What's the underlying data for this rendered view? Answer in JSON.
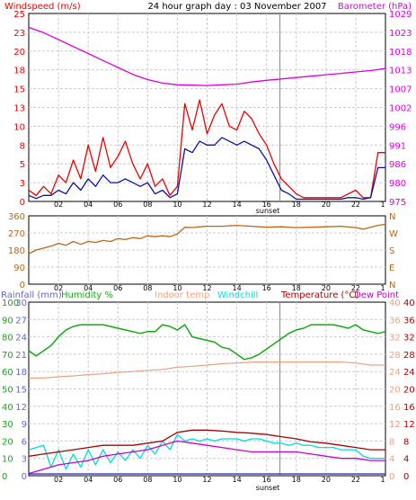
{
  "colors": {
    "wind_speed": "#ee0000",
    "wind_avg": "#1010a0",
    "barometer": "#dd00dd",
    "direction": "#b8661a",
    "rainfall": "#6666cc",
    "humidity": "#11aa11",
    "indoor_temp": "#f0a080",
    "windchill": "#00dddd",
    "temperature": "#aa0000",
    "dew_point": "#cc00cc",
    "rain_line": "#2222cc",
    "grid": "#cccccc",
    "sunset_line": "#888888"
  },
  "chart_data": [
    {
      "type": "line",
      "title": "24 hour graph day : 03 November 2007",
      "legend_left": "Windspeed (m/s)",
      "legend_right": "Barometer (hPa)",
      "x_ticks": [
        "02",
        "04",
        "06",
        "08",
        "10",
        "12",
        "14",
        "16",
        "18",
        "20",
        "22",
        "1"
      ],
      "annotation": "sunset",
      "left_axis": {
        "range": [
          0,
          25
        ],
        "ticks": [
          "0",
          "3",
          "5",
          "8",
          "10",
          "13",
          "15",
          "18",
          "20",
          "23",
          "25"
        ]
      },
      "right_axis": {
        "range": [
          975,
          1029
        ],
        "ticks": [
          "975",
          "980",
          "986",
          "991",
          "996",
          "1002",
          "1007",
          "1013",
          "1018",
          "1023",
          "1029"
        ]
      },
      "grid": true,
      "series": [
        {
          "name": "Windspeed (m/s)",
          "role": "gust",
          "x": [
            0,
            0.5,
            1,
            1.5,
            2,
            2.5,
            3,
            3.5,
            4,
            4.5,
            5,
            5.5,
            6,
            6.5,
            7,
            7.5,
            8,
            8.5,
            9,
            9.5,
            10,
            10.5,
            11,
            11.5,
            12,
            12.5,
            13,
            13.5,
            14,
            14.5,
            15,
            15.5,
            16,
            16.5,
            17,
            17.5,
            18,
            18.5,
            19,
            19.5,
            20,
            20.5,
            21,
            21.5,
            22,
            22.5,
            23,
            23.5,
            24
          ],
          "values": [
            1.5,
            0.8,
            2,
            1,
            3.5,
            2.5,
            5.5,
            3,
            7.5,
            4,
            8.5,
            4.5,
            6,
            8,
            5,
            3,
            5,
            2,
            3,
            0.8,
            2,
            13,
            9.5,
            13.5,
            9,
            11.5,
            13,
            10,
            9.5,
            12,
            11,
            9,
            7.5,
            5,
            3,
            2,
            1,
            0.5,
            0.5,
            0.5,
            0.5,
            0.5,
            0.5,
            1,
            1.5,
            0.5,
            0.5,
            6.5,
            6.5
          ]
        },
        {
          "name": "Average",
          "role": "average",
          "x": [
            0,
            0.5,
            1,
            1.5,
            2,
            2.5,
            3,
            3.5,
            4,
            4.5,
            5,
            5.5,
            6,
            6.5,
            7,
            7.5,
            8,
            8.5,
            9,
            9.5,
            10,
            10.5,
            11,
            11.5,
            12,
            12.5,
            13,
            13.5,
            14,
            14.5,
            15,
            15.5,
            16,
            16.5,
            17,
            17.5,
            18,
            18.5,
            19,
            19.5,
            20,
            20.5,
            21,
            21.5,
            22,
            22.5,
            23,
            23.5,
            24
          ],
          "values": [
            0.8,
            0.4,
            0.8,
            0.8,
            1.5,
            1,
            2.5,
            1.5,
            3,
            2,
            3.5,
            2.5,
            2.5,
            3,
            2.5,
            2,
            2.5,
            1,
            1.5,
            0.5,
            1,
            7,
            6.5,
            8,
            7.5,
            7.5,
            8.5,
            8,
            7.5,
            8,
            7.5,
            7,
            5.5,
            3.5,
            1.5,
            1,
            0.3,
            0.3,
            0.3,
            0.3,
            0.3,
            0.3,
            0.3,
            0.5,
            0.5,
            0.3,
            0.5,
            4.5,
            4.5
          ]
        },
        {
          "name": "Barometer (hPa)",
          "role": "barometer",
          "x": [
            0,
            1,
            2,
            3,
            4,
            5,
            6,
            7,
            8,
            9,
            10,
            11,
            12,
            13,
            14,
            15,
            16,
            17,
            18,
            19,
            20,
            21,
            22,
            23,
            24
          ],
          "values": [
            1025,
            1023.5,
            1021.5,
            1019.5,
            1017.5,
            1015.5,
            1013.5,
            1011.5,
            1010,
            1009,
            1008.5,
            1008.4,
            1008.3,
            1008.5,
            1008.7,
            1009.3,
            1009.8,
            1010.2,
            1010.6,
            1011,
            1011.4,
            1011.8,
            1012.2,
            1012.6,
            1013.2
          ]
        }
      ]
    },
    {
      "type": "line",
      "series_name": "Wind direction",
      "x_ticks": [
        "02",
        "04",
        "06",
        "08",
        "10",
        "12",
        "14",
        "16",
        "18",
        "20",
        "22",
        "1"
      ],
      "left_axis": {
        "range": [
          0,
          360
        ],
        "ticks": [
          "0",
          "90",
          "180",
          "270",
          "360"
        ]
      },
      "right_axis": {
        "ticks": [
          "N",
          "E",
          "S",
          "W",
          "N"
        ]
      },
      "grid": true,
      "series": [
        {
          "name": "Wind direction",
          "x": [
            0,
            0.5,
            1,
            1.5,
            2,
            2.5,
            3,
            3.5,
            4,
            4.5,
            5,
            5.5,
            6,
            6.5,
            7,
            7.5,
            8,
            8.5,
            9,
            9.5,
            10,
            10.5,
            11,
            11.5,
            12,
            13,
            14,
            15,
            16,
            17,
            18,
            19,
            20,
            21,
            22,
            22.5,
            23,
            23.5,
            24
          ],
          "values": [
            160,
            180,
            190,
            200,
            215,
            205,
            225,
            210,
            225,
            220,
            230,
            225,
            240,
            235,
            245,
            240,
            255,
            250,
            255,
            250,
            265,
            300,
            298,
            302,
            305,
            305,
            310,
            305,
            300,
            302,
            298,
            300,
            302,
            305,
            298,
            290,
            300,
            310,
            315
          ]
        }
      ]
    },
    {
      "type": "line",
      "x_ticks": [
        "02",
        "04",
        "06",
        "08",
        "10",
        "12",
        "14",
        "16",
        "18",
        "20",
        "22",
        "1"
      ],
      "annotation": "sunset",
      "legend": [
        "Rainfall (mm)",
        "Humidity %",
        "Indoor temp",
        "Windchill",
        "Temperature (°C)",
        "Dew Point"
      ],
      "rainfall_axis": {
        "range": [
          0,
          30
        ],
        "ticks": [
          "0",
          "3",
          "6",
          "9",
          "12",
          "15",
          "18",
          "21",
          "24",
          "27",
          "30"
        ]
      },
      "humidity_axis": {
        "range": [
          0,
          100
        ],
        "ticks": [
          "0",
          "10",
          "20",
          "30",
          "40",
          "50",
          "60",
          "70",
          "80",
          "90",
          "100"
        ]
      },
      "indoor_temp_axis": {
        "range": [
          0,
          40
        ],
        "ticks": [
          "0",
          "4",
          "8",
          "12",
          "16",
          "20",
          "24",
          "28",
          "32",
          "36",
          "40"
        ]
      },
      "temperature_axis": {
        "range": [
          0,
          40
        ],
        "ticks": [
          "0",
          "4",
          "8",
          "12",
          "16",
          "20",
          "24",
          "28",
          "32",
          "36",
          "40"
        ]
      },
      "grid": true,
      "series": [
        {
          "name": "Humidity %",
          "x": [
            0,
            0.5,
            1,
            1.5,
            2,
            2.5,
            3,
            3.5,
            4,
            4.5,
            5,
            5.5,
            6,
            6.5,
            7,
            7.5,
            8,
            8.5,
            9,
            9.5,
            10,
            10.5,
            11,
            11.5,
            12,
            12.5,
            13,
            13.5,
            14,
            14.5,
            15,
            15.5,
            16,
            16.5,
            17,
            17.5,
            18,
            18.5,
            19,
            19.5,
            20,
            20.5,
            21,
            21.5,
            22,
            22.5,
            23,
            23.5,
            24
          ],
          "values": [
            72,
            69,
            72,
            75,
            80,
            84,
            86,
            87,
            87,
            87,
            87,
            86,
            85,
            84,
            83,
            82,
            83,
            83,
            87,
            86,
            84,
            87,
            80,
            79,
            78,
            77,
            74,
            73,
            70,
            67,
            68,
            70,
            73,
            76,
            79,
            82,
            84,
            85,
            87,
            87,
            87,
            87,
            86,
            85,
            87,
            84,
            83,
            82,
            83
          ]
        },
        {
          "name": "Indoor temp",
          "x": [
            0,
            1,
            2,
            3,
            4,
            5,
            6,
            7,
            8,
            9,
            10,
            11,
            12,
            13,
            14,
            15,
            16,
            17,
            18,
            19,
            20,
            21,
            22,
            23,
            24
          ],
          "values": [
            22.5,
            22.5,
            22.8,
            23,
            23.3,
            23.5,
            23.8,
            24,
            24.3,
            24.5,
            25,
            25.2,
            25.5,
            25.8,
            26,
            26.2,
            26.2,
            26.2,
            26.2,
            26.2,
            26.2,
            26.2,
            26,
            25.5,
            25.5
          ]
        },
        {
          "name": "Windchill",
          "x": [
            0,
            0.5,
            1,
            1.5,
            2,
            2.5,
            3,
            3.5,
            4,
            4.5,
            5,
            5.5,
            6,
            6.5,
            7,
            7.5,
            8,
            8.5,
            9,
            9.5,
            10,
            10.5,
            11,
            11.5,
            12,
            12.5,
            13,
            13.5,
            14,
            14.5,
            15,
            15.5,
            16,
            16.5,
            17,
            17.5,
            18,
            18.5,
            19,
            19.5,
            20,
            20.5,
            21,
            21.5,
            22,
            22.5,
            23,
            23.5,
            24
          ],
          "values": [
            6,
            6.5,
            7,
            2,
            6,
            1.5,
            5,
            2,
            6,
            2.5,
            6,
            3,
            5.5,
            3.5,
            6,
            4,
            7,
            5,
            8,
            6,
            9.5,
            8,
            8.5,
            8,
            8.5,
            8,
            8.5,
            8.5,
            8.5,
            8,
            8.5,
            8.5,
            8,
            7.5,
            7.5,
            7,
            7.5,
            7,
            7,
            6.5,
            6.5,
            6.5,
            6,
            6,
            6,
            4.5,
            4,
            4,
            4
          ]
        },
        {
          "name": "Temperature (°C)",
          "x": [
            0,
            1,
            2,
            3,
            4,
            5,
            6,
            7,
            8,
            9,
            10,
            11,
            12,
            13,
            14,
            15,
            16,
            17,
            18,
            19,
            20,
            21,
            22,
            23,
            24
          ],
          "values": [
            4.5,
            5,
            5.5,
            6,
            6.5,
            7,
            7,
            7,
            7.5,
            8,
            10,
            10.5,
            10.5,
            10.3,
            10,
            9.8,
            9.5,
            9,
            8.5,
            7.8,
            7.5,
            7,
            6.5,
            6,
            6
          ]
        },
        {
          "name": "Dew Point",
          "x": [
            0,
            1,
            2,
            3,
            4,
            5,
            6,
            7,
            8,
            9,
            10,
            11,
            12,
            13,
            14,
            15,
            16,
            17,
            18,
            19,
            20,
            21,
            22,
            23,
            24
          ],
          "values": [
            0.5,
            1.5,
            2.5,
            3,
            3.5,
            4.5,
            5,
            5.5,
            6,
            7,
            8,
            7.5,
            7,
            6.5,
            6,
            5.5,
            5.5,
            5.5,
            5.5,
            5,
            4.5,
            4,
            4,
            3.5,
            3.5
          ]
        },
        {
          "name": "Rainfall (mm)",
          "x": [
            0,
            24
          ],
          "values": [
            0,
            0
          ]
        }
      ]
    }
  ]
}
